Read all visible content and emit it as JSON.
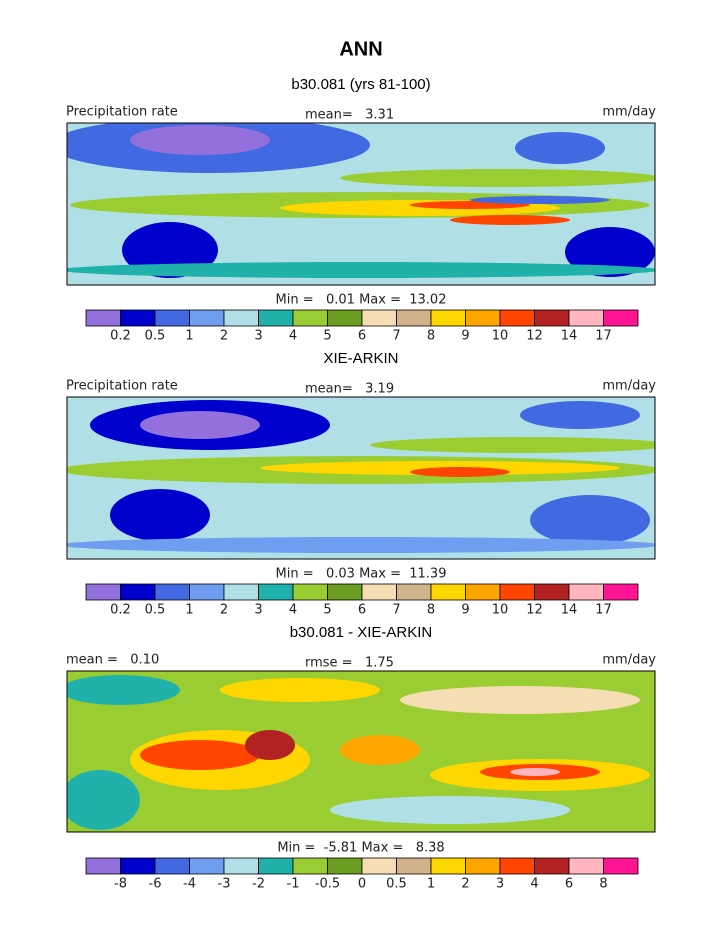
{
  "title": "ANN",
  "panels": [
    {
      "heading": "b30.081 (yrs 81-100)",
      "left_label": "Precipitation rate",
      "center_label": "mean=   3.31",
      "right_label": "mm/day",
      "min_max": "Min =   0.01 Max =  13.02",
      "colorbar": {
        "colors": [
          "#9370db",
          "#0000cd",
          "#4169e1",
          "#6f9ef0",
          "#b0e0e6",
          "#20b2aa",
          "#9acd32",
          "#6b9e23",
          "#f5deb3",
          "#d2b48c",
          "#ffd700",
          "#ffa500",
          "#ff4500",
          "#b22222",
          "#ffb6c1",
          "#ff1493"
        ],
        "labels": [
          "0.2",
          "0.5",
          "1",
          "2",
          "3",
          "4",
          "5",
          "6",
          "7",
          "8",
          "9",
          "10",
          "12",
          "14",
          "17"
        ]
      }
    },
    {
      "heading": "XIE-ARKIN",
      "left_label": "Precipitation rate",
      "center_label": "mean=   3.19",
      "right_label": "mm/day",
      "min_max": "Min =   0.03 Max =  11.39",
      "colorbar": {
        "colors": [
          "#9370db",
          "#0000cd",
          "#4169e1",
          "#6f9ef0",
          "#b0e0e6",
          "#20b2aa",
          "#9acd32",
          "#6b9e23",
          "#f5deb3",
          "#d2b48c",
          "#ffd700",
          "#ffa500",
          "#ff4500",
          "#b22222",
          "#ffb6c1",
          "#ff1493"
        ],
        "labels": [
          "0.2",
          "0.5",
          "1",
          "2",
          "3",
          "4",
          "5",
          "6",
          "7",
          "8",
          "9",
          "10",
          "12",
          "14",
          "17"
        ]
      }
    },
    {
      "heading": "b30.081 - XIE-ARKIN",
      "left_label": "mean =   0.10",
      "center_label": "rmse =   1.75",
      "right_label": "mm/day",
      "min_max": "Min =  -5.81 Max =   8.38",
      "colorbar": {
        "colors": [
          "#9370db",
          "#0000cd",
          "#4169e1",
          "#6f9ef0",
          "#b0e0e6",
          "#20b2aa",
          "#9acd32",
          "#6b9e23",
          "#f5deb3",
          "#d2b48c",
          "#ffd700",
          "#ffa500",
          "#ff4500",
          "#b22222",
          "#ffb6c1",
          "#ff1493"
        ],
        "labels": [
          "-8",
          "-6",
          "-4",
          "-3",
          "-2",
          "-1",
          "-0.5",
          "0",
          "0.5",
          "1",
          "2",
          "3",
          "4",
          "6",
          "8"
        ]
      }
    }
  ]
}
